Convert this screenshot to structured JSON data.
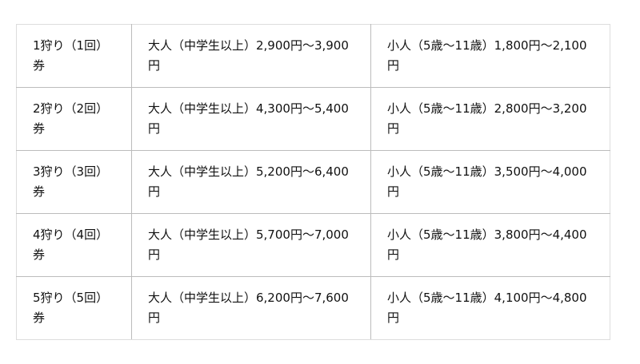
{
  "rows": [
    {
      "ticket": "1狩り（1回）券",
      "adult": "大人（中学生以上）2,900円～3,900円",
      "child": "小人（5歳～11歳）1,800円～2,100円"
    },
    {
      "ticket": "2狩り（2回）券",
      "adult": "大人（中学生以上）4,300円～5,400円",
      "child": "小人（5歳～11歳）2,800円～3,200円"
    },
    {
      "ticket": "3狩り（3回）券",
      "adult": "大人（中学生以上）5,200円～6,400円",
      "child": "小人（5歳～11歳）3,500円～4,000円"
    },
    {
      "ticket": "4狩り（4回）券",
      "adult": "大人（中学生以上）5,700円～7,000円",
      "child": "小人（5歳～11歳）3,800円～4,400円"
    },
    {
      "ticket": "5狩り（5回）券",
      "adult": "大人（中学生以上）6,200円～7,600円",
      "child": "小人（5歳～11歳）4,100円～4,800円"
    }
  ]
}
